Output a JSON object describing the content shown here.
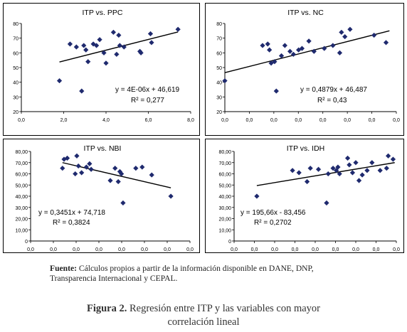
{
  "chart_data": [
    {
      "type": "scatter",
      "title": "ITP vs. PPC",
      "xlim": [
        0,
        8
      ],
      "ylim": [
        20,
        80
      ],
      "xticks": [
        "0,0",
        "2,0",
        "4,0",
        "6,0",
        "8,0"
      ],
      "yticks": [
        "20",
        "30",
        "40",
        "50",
        "60",
        "70",
        "80"
      ],
      "points": [
        [
          1.8,
          41
        ],
        [
          2.3,
          66
        ],
        [
          2.6,
          64
        ],
        [
          2.85,
          34
        ],
        [
          2.95,
          65
        ],
        [
          3.05,
          62
        ],
        [
          3.15,
          54
        ],
        [
          3.4,
          66
        ],
        [
          3.55,
          65
        ],
        [
          3.7,
          69
        ],
        [
          3.9,
          60
        ],
        [
          4.0,
          53
        ],
        [
          4.35,
          74
        ],
        [
          4.5,
          59
        ],
        [
          4.6,
          72
        ],
        [
          4.65,
          65
        ],
        [
          4.85,
          64
        ],
        [
          5.6,
          61
        ],
        [
          5.65,
          60
        ],
        [
          6.1,
          73
        ],
        [
          6.15,
          67
        ],
        [
          7.4,
          76
        ]
      ],
      "trendline": {
        "x": [
          1.8,
          7.4
        ],
        "y": [
          53.8,
          74.2
        ]
      },
      "equation": "y = 4E-06x + 46,619",
      "r2": "R² = 0,277"
    },
    {
      "type": "scatter",
      "title": "ITP vs. NC",
      "xlim": [
        0,
        1
      ],
      "ylim": [
        20,
        80
      ],
      "xticks": [
        "0,0",
        "0,0",
        "0,0",
        "0,0",
        "0,0",
        "0,0",
        "0,0",
        "0,0"
      ],
      "yticks": [
        "20",
        "30",
        "40",
        "50",
        "60",
        "70",
        "80"
      ],
      "points": [
        [
          0.0,
          41
        ],
        [
          0.22,
          65
        ],
        [
          0.25,
          66
        ],
        [
          0.26,
          62
        ],
        [
          0.27,
          53
        ],
        [
          0.29,
          54
        ],
        [
          0.3,
          34
        ],
        [
          0.33,
          58
        ],
        [
          0.35,
          65
        ],
        [
          0.38,
          61
        ],
        [
          0.4,
          59
        ],
        [
          0.43,
          62
        ],
        [
          0.45,
          63
        ],
        [
          0.49,
          68
        ],
        [
          0.52,
          61
        ],
        [
          0.58,
          63
        ],
        [
          0.63,
          65
        ],
        [
          0.67,
          60
        ],
        [
          0.68,
          74
        ],
        [
          0.7,
          71
        ],
        [
          0.73,
          76
        ],
        [
          0.87,
          72
        ],
        [
          0.94,
          67
        ]
      ],
      "trendline": {
        "x": [
          0.0,
          0.96
        ],
        "y": [
          46.5,
          75.0
        ]
      },
      "equation": "y = 0,4879x + 46,487",
      "r2": "R² = 0,43"
    },
    {
      "type": "scatter",
      "title": "ITP vs. NBI",
      "xlim": [
        0,
        1
      ],
      "ylim": [
        0,
        80
      ],
      "xticks": [
        "0,0",
        "0,0",
        "0,0",
        "0,0",
        "0,0",
        "0,0",
        "0,0",
        "0,0"
      ],
      "yticks": [
        "0",
        "10,00",
        "20,00",
        "30,00",
        "40,00",
        "50,00",
        "60,00",
        "70,00",
        "80,00"
      ],
      "points": [
        [
          0.2,
          65
        ],
        [
          0.21,
          73
        ],
        [
          0.23,
          74
        ],
        [
          0.28,
          60
        ],
        [
          0.29,
          76
        ],
        [
          0.3,
          67
        ],
        [
          0.32,
          61
        ],
        [
          0.35,
          66
        ],
        [
          0.37,
          69
        ],
        [
          0.38,
          64
        ],
        [
          0.5,
          54
        ],
        [
          0.53,
          65
        ],
        [
          0.55,
          53
        ],
        [
          0.56,
          62
        ],
        [
          0.57,
          60
        ],
        [
          0.58,
          34
        ],
        [
          0.66,
          65
        ],
        [
          0.7,
          66
        ],
        [
          0.76,
          59
        ],
        [
          0.88,
          40
        ]
      ],
      "trendline": {
        "x": [
          0.2,
          0.88
        ],
        "y": [
          70.0,
          47.5
        ]
      },
      "equation": "y = 0,3451x + 74,718",
      "r2": "R² = 0,3824"
    },
    {
      "type": "scatter",
      "title": "ITP vs. IDH",
      "xlim": [
        0,
        1
      ],
      "ylim": [
        0,
        80
      ],
      "xticks": [
        "0,0",
        "0,0",
        "0,0",
        "0,0",
        "0,0",
        "0,0",
        "0,0",
        "0,0",
        "0,0"
      ],
      "yticks": [
        "0",
        "10,00",
        "20,00",
        "30,00",
        "40,00",
        "50,00",
        "60,00",
        "70,00",
        "80,00"
      ],
      "points": [
        [
          0.14,
          40
        ],
        [
          0.36,
          63
        ],
        [
          0.4,
          61
        ],
        [
          0.45,
          53
        ],
        [
          0.47,
          65
        ],
        [
          0.52,
          64
        ],
        [
          0.57,
          34
        ],
        [
          0.58,
          60
        ],
        [
          0.61,
          65
        ],
        [
          0.63,
          63
        ],
        [
          0.64,
          66
        ],
        [
          0.65,
          60
        ],
        [
          0.7,
          74
        ],
        [
          0.71,
          68
        ],
        [
          0.73,
          61
        ],
        [
          0.75,
          70
        ],
        [
          0.77,
          54
        ],
        [
          0.79,
          59
        ],
        [
          0.82,
          63
        ],
        [
          0.85,
          70
        ],
        [
          0.9,
          63
        ],
        [
          0.94,
          65
        ],
        [
          0.95,
          76
        ],
        [
          0.98,
          73
        ]
      ],
      "trendline": {
        "x": [
          0.14,
          0.99
        ],
        "y": [
          49.5,
          70.0
        ]
      },
      "equation": "y = 195,66x - 83,456",
      "r2": "R² = 0,2702"
    }
  ],
  "source": {
    "label": "Fuente:",
    "line1": "Cálculos propios a partir de la información disponible en DANE, DNP,",
    "line2": "Transparencia Internacional y CEPAL."
  },
  "caption": {
    "label": "Figura 2.",
    "line1": "Regresión entre ITP y las variables con mayor",
    "line2": "correlación lineal"
  }
}
